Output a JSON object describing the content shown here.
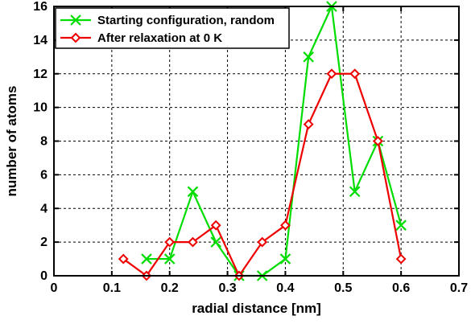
{
  "chart_data": {
    "type": "line",
    "xlabel": "radial distance [nm]",
    "ylabel": "number of atoms",
    "xlim": [
      0,
      0.7
    ],
    "ylim": [
      0,
      16
    ],
    "xticks": [
      0,
      0.1,
      0.2,
      0.3,
      0.4,
      0.5,
      0.6,
      0.7
    ],
    "xtick_labels": [
      "0",
      "0.1",
      "0.2",
      "0.3",
      "0.4",
      "0.5",
      "0.6",
      "0.7"
    ],
    "yticks": [
      0,
      2,
      4,
      6,
      8,
      10,
      12,
      14,
      16
    ],
    "ytick_labels": [
      "0",
      "2",
      "4",
      "6",
      "8",
      "10",
      "12",
      "14",
      "16"
    ],
    "grid": true,
    "legend_position": "top-left",
    "series": [
      {
        "name": "Starting configuration, random",
        "color": "#00dd00",
        "marker": "x",
        "x": [
          0.16,
          0.2,
          0.24,
          0.28,
          0.32,
          0.36,
          0.4,
          0.44,
          0.48,
          0.52,
          0.56,
          0.6
        ],
        "y": [
          1,
          1,
          5,
          2,
          0,
          0,
          1,
          13,
          16,
          5,
          8,
          3
        ]
      },
      {
        "name": "After relaxation at 0 K",
        "color": "#ee0000",
        "marker": "diamond",
        "x": [
          0.12,
          0.16,
          0.2,
          0.24,
          0.28,
          0.32,
          0.36,
          0.4,
          0.44,
          0.48,
          0.52,
          0.56,
          0.6
        ],
        "y": [
          1,
          0,
          2,
          2,
          3,
          0,
          2,
          3,
          9,
          12,
          12,
          8,
          1
        ]
      }
    ]
  }
}
